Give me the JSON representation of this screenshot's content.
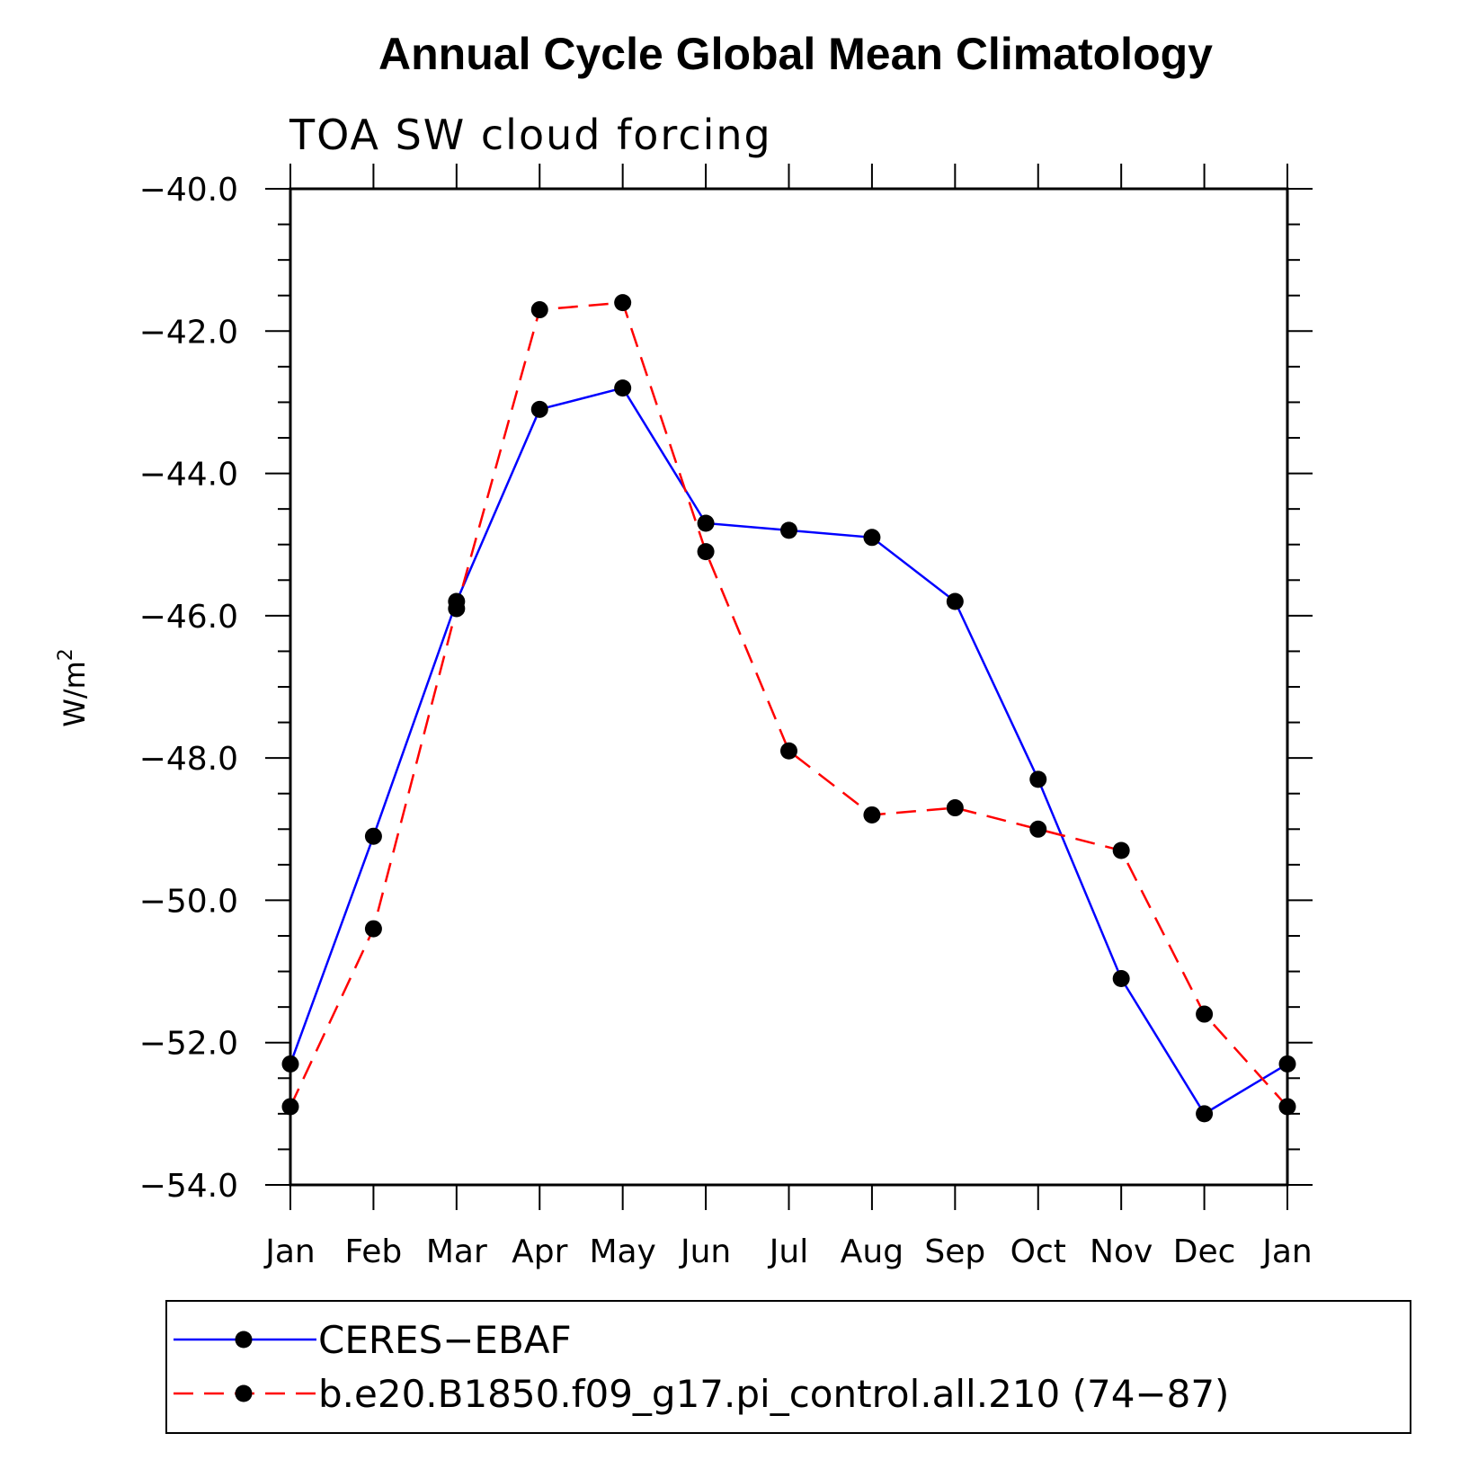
{
  "chart_data": {
    "type": "line",
    "title": "Annual Cycle Global Mean Climatology",
    "subtitle": "TOA SW cloud forcing",
    "ylabel": "W/m",
    "ylabel_superscript": "2",
    "xlabel": "",
    "categories": [
      "Jan",
      "Feb",
      "Mar",
      "Apr",
      "May",
      "Jun",
      "Jul",
      "Aug",
      "Sep",
      "Oct",
      "Nov",
      "Dec",
      "Jan"
    ],
    "ylim": [
      -54.0,
      -40.0
    ],
    "yticks": [
      "-40.0",
      "-42.0",
      "-44.0",
      "-46.0",
      "-48.0",
      "-50.0",
      "-52.0",
      "-54.0"
    ],
    "grid": false,
    "legend_position": "bottom",
    "series": [
      {
        "name": "CERES-EBAF",
        "color": "#0000ff",
        "dash": "solid",
        "values": [
          -52.3,
          -49.1,
          -45.8,
          -43.1,
          -42.8,
          -44.7,
          -44.8,
          -44.9,
          -45.8,
          -48.3,
          -51.1,
          -53.0,
          -52.3
        ]
      },
      {
        "name": "b.e20.B1850.f09_g17.pi_control.all.210 (74-87)",
        "color": "#ff0000",
        "dash": "dashed",
        "values": [
          -52.9,
          -50.4,
          -45.9,
          -41.7,
          -41.6,
          -45.1,
          -47.9,
          -48.8,
          -48.7,
          -49.0,
          -49.3,
          -51.6,
          -52.9
        ]
      }
    ]
  }
}
